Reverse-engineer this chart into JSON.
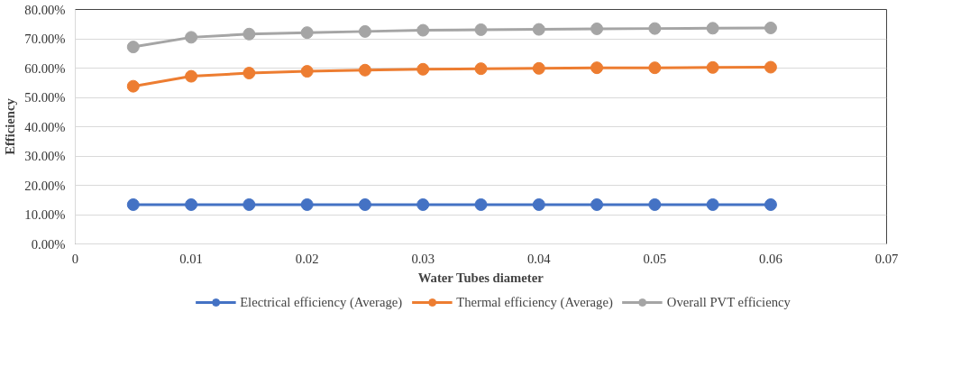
{
  "chart_data": {
    "type": "line",
    "xlabel": "Water Tubes diameter",
    "ylabel": "Efficiency",
    "x": [
      0.005,
      0.01,
      0.015,
      0.02,
      0.025,
      0.03,
      0.035,
      0.04,
      0.045,
      0.05,
      0.055,
      0.06
    ],
    "series": [
      {
        "name": "Electrical efficiency (Average)",
        "color": "#4472c4",
        "values": [
          13.4,
          13.4,
          13.4,
          13.4,
          13.4,
          13.4,
          13.4,
          13.4,
          13.4,
          13.4,
          13.4,
          13.4
        ]
      },
      {
        "name": "Thermal efficiency (Average)",
        "color": "#ed7d31",
        "values": [
          53.8,
          57.2,
          58.3,
          58.9,
          59.3,
          59.6,
          59.8,
          59.9,
          60.1,
          60.1,
          60.2,
          60.3
        ]
      },
      {
        "name": "Overall PVT efficiency",
        "color": "#a5a5a5",
        "values": [
          67.2,
          70.5,
          71.6,
          72.1,
          72.5,
          72.9,
          73.1,
          73.2,
          73.4,
          73.5,
          73.6,
          73.7
        ]
      }
    ],
    "xlim": [
      0,
      0.07
    ],
    "xticks": [
      0,
      0.01,
      0.02,
      0.03,
      0.04,
      0.05,
      0.06,
      0.07
    ],
    "ylim": [
      0,
      80
    ],
    "yticks": [
      {
        "value": 0,
        "label": "0.00%"
      },
      {
        "value": 10,
        "label": "10.00%"
      },
      {
        "value": 20,
        "label": "20.00%"
      },
      {
        "value": 30,
        "label": "30.00%"
      },
      {
        "value": 40,
        "label": "40.00%"
      },
      {
        "value": 50,
        "label": "50.00%"
      },
      {
        "value": 60,
        "label": "60.00%"
      },
      {
        "value": 70,
        "label": "70.00%"
      },
      {
        "value": 80,
        "label": "80.00%"
      }
    ],
    "grid": "y",
    "legend": "bottom",
    "marker": "circle",
    "line_style": "solid"
  }
}
